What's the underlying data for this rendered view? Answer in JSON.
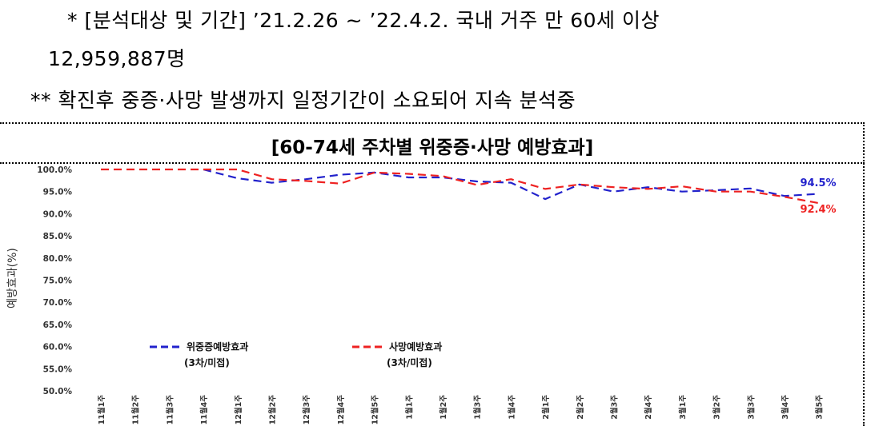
{
  "notes": {
    "line1": "* [분석대상 및 기간] ’21.2.26 ~ ’22.4.2. 국내 거주 만 60세 이상",
    "line2": "12,959,887명",
    "line3": "** 확진후 중증·사망 발생까지 일정기간이 소요되어 지속 분석중"
  },
  "chart_data": {
    "type": "line",
    "title": "[60-74세 주차별 위중증·사망 예방효과]",
    "ylabel": "예방효과(%)",
    "xlabel": "",
    "ylim": [
      50,
      100
    ],
    "yticks": [
      "50.0%",
      "55.0%",
      "60.0%",
      "65.0%",
      "70.0%",
      "75.0%",
      "80.0%",
      "85.0%",
      "90.0%",
      "95.0%",
      "100.0%"
    ],
    "categories": [
      "11월1주",
      "11월2주",
      "11월3주",
      "11월4주",
      "12월1주",
      "12월2주",
      "12월3주",
      "12월4주",
      "12월5주",
      "1월1주",
      "1월2주",
      "1월3주",
      "1월4주",
      "2월1주",
      "2월2주",
      "2월3주",
      "2월4주",
      "3월1주",
      "3월2주",
      "3월3주",
      "3월4주",
      "3월5주"
    ],
    "series": [
      {
        "name": "위중증예방효과",
        "sublabel": "(3차/미접)",
        "color": "#2222cc",
        "values": [
          null,
          null,
          null,
          100.0,
          98.0,
          97.0,
          97.8,
          98.8,
          99.3,
          98.2,
          98.2,
          97.3,
          97.0,
          93.3,
          96.6,
          95.0,
          96.0,
          95.0,
          95.3,
          95.7,
          94.0,
          94.5
        ],
        "end_label": "94.5%"
      },
      {
        "name": "사망예방효과",
        "sublabel": "(3차/미접)",
        "color": "#ee2222",
        "values": [
          100.0,
          100.0,
          100.0,
          100.0,
          100.0,
          97.8,
          97.4,
          96.8,
          99.3,
          99.0,
          98.5,
          96.5,
          97.8,
          95.6,
          96.6,
          96.0,
          95.6,
          96.2,
          95.0,
          95.0,
          93.8,
          92.4
        ],
        "end_label": "92.4%"
      }
    ],
    "legend_position": "center",
    "grid": false
  }
}
